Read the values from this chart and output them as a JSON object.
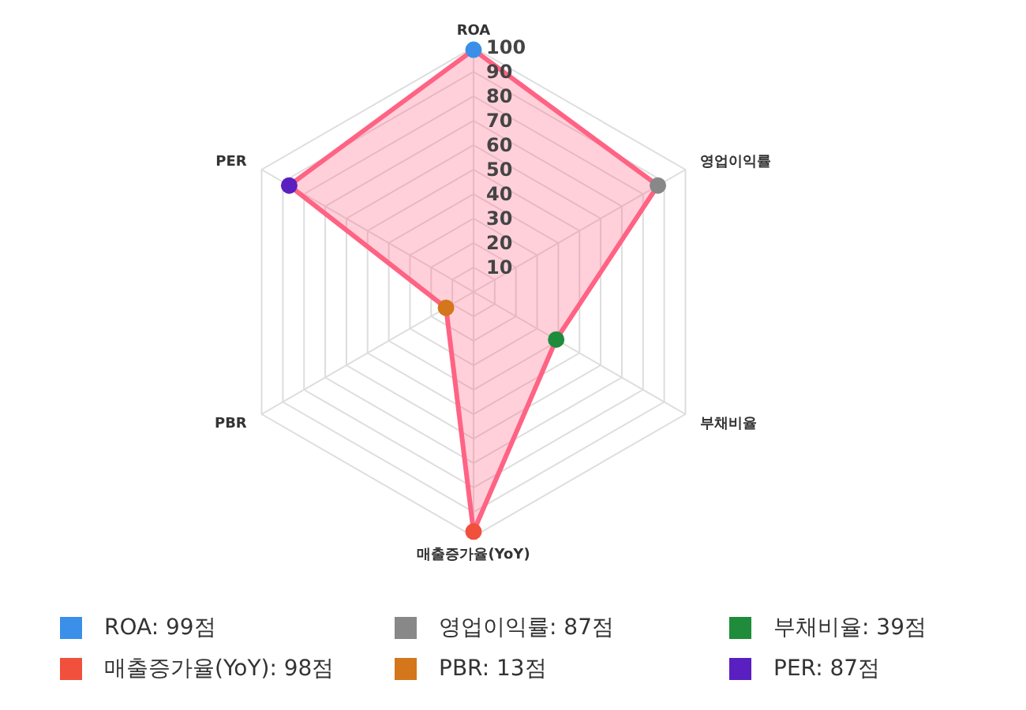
{
  "chart_data": {
    "type": "radar",
    "categories": [
      "ROA",
      "영업이익률",
      "부채비율",
      "매출증가율(YoY)",
      "PBR",
      "PER"
    ],
    "values": [
      99,
      87,
      39,
      98,
      13,
      87
    ],
    "color": "#ff6384",
    "colors": [
      "#3b8fe8",
      "#888888",
      "#1e8c3a",
      "#f0503c",
      "#d4761c",
      "#5a1fc0"
    ],
    "annotations": [
      "ROA: 99점",
      "영업이익률: 87점",
      "부채비율: 39점",
      "매출증가율(YoY): 98점",
      "PBR: 13점",
      "PER: 87점"
    ],
    "ylim": [
      0,
      100
    ],
    "yticks": [
      10,
      20,
      30,
      40,
      50,
      60,
      70,
      80,
      90,
      100
    ],
    "grid": true,
    "marker": "circle"
  }
}
